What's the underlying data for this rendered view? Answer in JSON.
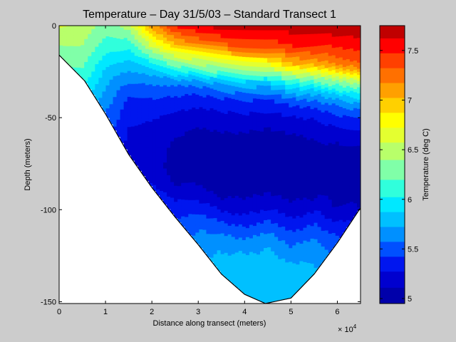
{
  "chart_data": {
    "type": "heatmap",
    "title": "Temperature – Day 31/5/03 – Standard Transect 1",
    "xlabel": "Distance along transect (meters)",
    "ylabel": "Depth (meters)",
    "x_exponent_label": "× 10",
    "x_exponent_power": "4",
    "xlim": [
      0,
      65000
    ],
    "ylim": [
      -151,
      0
    ],
    "x_ticks": [
      0,
      10000,
      20000,
      30000,
      40000,
      50000,
      60000
    ],
    "x_tick_labels": [
      "0",
      "1",
      "2",
      "3",
      "4",
      "5",
      "6"
    ],
    "y_ticks": [
      0,
      -50,
      -100,
      -150
    ],
    "y_tick_labels": [
      "0",
      "-50",
      "-100",
      "-150"
    ],
    "colorbar": {
      "label": "Temperature (deg C)",
      "range": [
        4.95,
        7.75
      ],
      "ticks": [
        5,
        5.5,
        6,
        6.5,
        7,
        7.5
      ],
      "tick_labels": [
        "5",
        "5.5",
        "6",
        "6.5",
        "7",
        "7.5"
      ],
      "levels": [
        {
          "value": 5.025,
          "color": "#0000aa"
        },
        {
          "value": 5.2,
          "color": "#0000cf"
        },
        {
          "value": 5.35,
          "color": "#0016ef"
        },
        {
          "value": 5.5,
          "color": "#0050ff"
        },
        {
          "value": 5.65,
          "color": "#0090ff"
        },
        {
          "value": 5.8,
          "color": "#00c0ff"
        },
        {
          "value": 5.95,
          "color": "#00e8ff"
        },
        {
          "value": 6.1,
          "color": "#30ffdc"
        },
        {
          "value": 6.3,
          "color": "#80ffa8"
        },
        {
          "value": 6.5,
          "color": "#b8ff6a"
        },
        {
          "value": 6.65,
          "color": "#e4ff30"
        },
        {
          "value": 6.8,
          "color": "#ffff00"
        },
        {
          "value": 6.95,
          "color": "#ffd000"
        },
        {
          "value": 7.1,
          "color": "#ffa000"
        },
        {
          "value": 7.25,
          "color": "#ff7000"
        },
        {
          "value": 7.4,
          "color": "#ff4000"
        },
        {
          "value": 7.55,
          "color": "#ff0000"
        },
        {
          "value": 7.7,
          "color": "#c00000"
        }
      ]
    },
    "seabed_profile": [
      {
        "x": 0,
        "depth": -16
      },
      {
        "x": 5500,
        "depth": -30
      },
      {
        "x": 10000,
        "depth": -48
      },
      {
        "x": 15000,
        "depth": -70
      },
      {
        "x": 20000,
        "depth": -88
      },
      {
        "x": 25000,
        "depth": -104
      },
      {
        "x": 30000,
        "depth": -119
      },
      {
        "x": 35000,
        "depth": -135
      },
      {
        "x": 40000,
        "depth": -146
      },
      {
        "x": 44500,
        "depth": -151
      },
      {
        "x": 50000,
        "depth": -148
      },
      {
        "x": 55000,
        "depth": -135
      },
      {
        "x": 60000,
        "depth": -118
      },
      {
        "x": 65000,
        "depth": -99
      }
    ],
    "temperature_profiles": [
      {
        "x": 0,
        "temps": [
          6.6,
          6.3
        ]
      },
      {
        "x": 5000,
        "temps": [
          6.55,
          6.35,
          6.1
        ]
      },
      {
        "x": 10000,
        "temps": [
          6.3,
          6.1,
          5.85,
          5.7,
          5.55
        ]
      },
      {
        "x": 15000,
        "temps": [
          6.5,
          6.1,
          5.85,
          5.6,
          5.4,
          5.3,
          5.25,
          5.2
        ]
      },
      {
        "x": 20000,
        "temps": [
          7.1,
          6.6,
          5.9,
          5.55,
          5.35,
          5.25,
          5.2,
          5.15,
          5.3
        ]
      },
      {
        "x": 25000,
        "temps": [
          7.5,
          7.0,
          6.3,
          5.6,
          5.35,
          5.2,
          5.1,
          5.05,
          5.05,
          5.25,
          5.4
        ]
      },
      {
        "x": 30000,
        "temps": [
          7.6,
          7.2,
          6.5,
          5.7,
          5.35,
          5.2,
          5.05,
          5.0,
          5.0,
          5.15,
          5.35,
          5.55,
          5.65
        ]
      },
      {
        "x": 35000,
        "temps": [
          7.7,
          7.3,
          6.6,
          5.75,
          5.35,
          5.2,
          5.05,
          5.0,
          5.0,
          5.1,
          5.35,
          5.6,
          5.75,
          5.8
        ]
      },
      {
        "x": 40000,
        "temps": [
          7.7,
          7.4,
          6.7,
          5.8,
          5.4,
          5.2,
          5.05,
          5.0,
          5.0,
          5.1,
          5.3,
          5.55,
          5.75,
          5.8,
          5.8
        ]
      },
      {
        "x": 45000,
        "temps": [
          7.7,
          7.4,
          6.8,
          5.9,
          5.4,
          5.2,
          5.05,
          5.0,
          5.0,
          5.1,
          5.3,
          5.55,
          5.75,
          5.8,
          5.8,
          5.8
        ]
      },
      {
        "x": 50000,
        "temps": [
          7.7,
          7.5,
          7.0,
          6.0,
          5.45,
          5.2,
          5.05,
          5.0,
          5.0,
          5.1,
          5.3,
          5.5,
          5.7,
          5.8,
          5.8
        ]
      },
      {
        "x": 55000,
        "temps": [
          7.7,
          7.5,
          7.1,
          6.1,
          5.5,
          5.25,
          5.1,
          5.0,
          5.0,
          5.1,
          5.35,
          5.55,
          5.7,
          5.75
        ]
      },
      {
        "x": 60000,
        "temps": [
          7.75,
          7.5,
          7.2,
          6.2,
          5.55,
          5.3,
          5.1,
          5.0,
          5.0,
          5.05,
          5.3,
          5.5
        ]
      },
      {
        "x": 65000,
        "temps": [
          7.75,
          7.55,
          7.3,
          6.25,
          5.6,
          5.3,
          5.1,
          5.0,
          5.0,
          5.1
        ]
      }
    ]
  }
}
